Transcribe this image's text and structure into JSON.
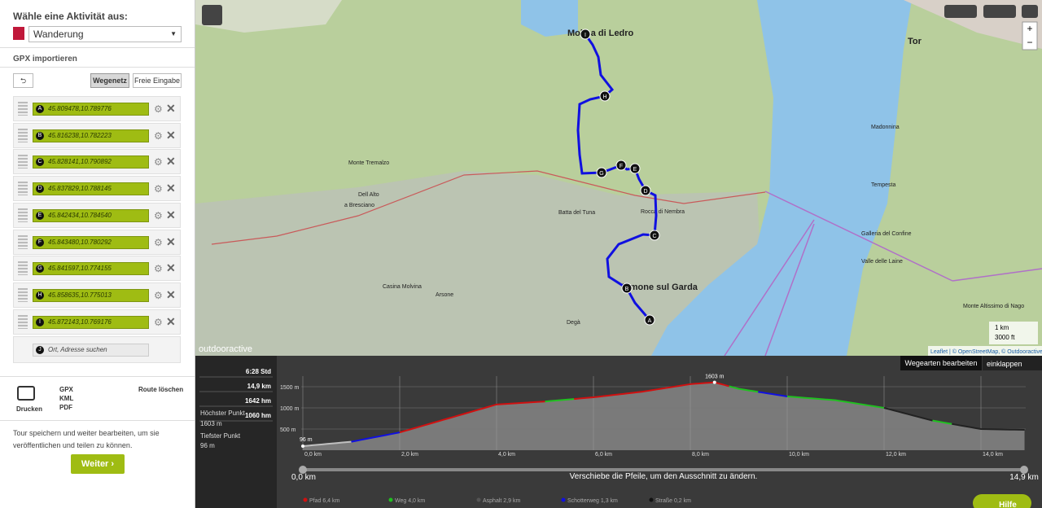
{
  "sidebar": {
    "activity_label": "Wähle eine Aktivität aus:",
    "activity": "Wanderung",
    "gpx_import": "GPX importieren",
    "tabs": [
      "Wegenetz",
      "Freie Eingabe"
    ],
    "waypoints": [
      {
        "letter": "A",
        "coords": "45.809478,10.789776"
      },
      {
        "letter": "B",
        "coords": "45.816238,10.782223"
      },
      {
        "letter": "C",
        "coords": "45.828141,10.790892"
      },
      {
        "letter": "D",
        "coords": "45.837829,10.788145"
      },
      {
        "letter": "E",
        "coords": "45.842434,10.784540"
      },
      {
        "letter": "F",
        "coords": "45.843480,10.780292"
      },
      {
        "letter": "G",
        "coords": "45.841597,10.774155"
      },
      {
        "letter": "H",
        "coords": "45.858635,10.775013"
      },
      {
        "letter": "I",
        "coords": "45.872143,10.769176"
      }
    ],
    "search": {
      "letter": "J",
      "placeholder": "Ort, Adresse suchen"
    },
    "print": "Drucken",
    "formats": [
      "GPX",
      "KML",
      "PDF"
    ],
    "delete": "Route löschen",
    "note": "Tour speichern und weiter bearbeiten, um sie veröffentlichen und teilen zu können.",
    "next": "Weiter"
  },
  "map": {
    "places": [
      "Molina di Ledro",
      "Limone sul Garda",
      "Monte Tremalzo",
      "Dell Alto",
      "a Bresciano",
      "Batta del Tuna",
      "Rocca di Nembra",
      "Madonnina",
      "Tempesta",
      "Galleria del Confine",
      "Valle delle Laine",
      "Monte Altissimo di Nago",
      "Tor",
      "Casina Molvina",
      "Arsone",
      "Degà"
    ],
    "brand": "outdooractive",
    "attribution": "Leaflet | © OpenStreetMap, © Outdooractive",
    "scale": [
      "1 km",
      "3000 ft"
    ]
  },
  "profile": {
    "stats": [
      "6:28 Std",
      "14,9 km",
      "1642 hm",
      "1060 hm"
    ],
    "highest_label": "Höchster Punkt",
    "highest": "1603 m",
    "lowest_label": "Tiefster Punkt",
    "lowest": "96 m",
    "edit": "Wegearten bearbeiten",
    "collapse": "einklappen",
    "yticks": [
      "500 m",
      "1000 m",
      "1500 m"
    ],
    "xticks": [
      "0,0 km",
      "2,0 km",
      "4,0 km",
      "6,0 km",
      "8,0 km",
      "10,0 km",
      "12,0 km",
      "14,0 km"
    ],
    "peak": "1603 m",
    "start": "96 m",
    "range_start": "0,0 km",
    "range_end": "14,9 km",
    "hint": "Verschiebe die Pfeile, um den Ausschnitt zu ändern.",
    "legend": [
      "Pfad 6,4 km",
      "Weg 4,0 km",
      "Asphalt 2,9 km",
      "Schotterweg 1,3 km",
      "Straße 0,2 km"
    ]
  },
  "help": "Hilfe"
}
